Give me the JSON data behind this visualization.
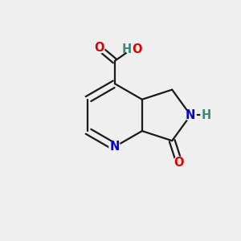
{
  "bg_color": "#efefef",
  "bond_color": "#1a1a1a",
  "atom_colors": {
    "O": "#dd0000",
    "N": "#0000cc",
    "H": "#3a8a7a",
    "C": "#1a1a1a"
  },
  "bond_width": 1.6,
  "dbo": 0.018,
  "font_size": 10.5,
  "figsize": [
    3.0,
    3.0
  ],
  "dpi": 100
}
